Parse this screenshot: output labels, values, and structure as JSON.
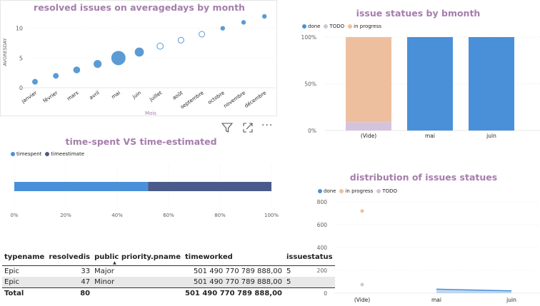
{
  "scatter": {
    "title": "resolved issues on averagedays by month",
    "ylabel": "AVGRESDAY",
    "xlabel": "Mois",
    "chart_data": {
      "type": "scatter",
      "categories": [
        "janvier",
        "février",
        "mars",
        "avril",
        "mai",
        "juin",
        "juillet",
        "août",
        "septembre",
        "octobre",
        "novembre",
        "décembre"
      ],
      "values": [
        1,
        2,
        3,
        4,
        5,
        6,
        7,
        8,
        9,
        10,
        11,
        12
      ],
      "size_weight": [
        1,
        1,
        1.2,
        1.4,
        2.5,
        1.6,
        1.1,
        1,
        1,
        0.8,
        0.8,
        0.8
      ],
      "hollow": [
        false,
        false,
        false,
        false,
        false,
        false,
        true,
        true,
        true,
        false,
        false,
        false
      ],
      "yticks": [
        0,
        5,
        10
      ],
      "ylim": [
        0,
        12
      ],
      "color": "#5b9bd5"
    }
  },
  "stacked": {
    "title": "issue statues by bmonth",
    "legend": [
      {
        "name": "done",
        "color": "#4a90d9"
      },
      {
        "name": "TODO",
        "color": "#d5c3dc"
      },
      {
        "name": "in progress",
        "color": "#eebf9e"
      }
    ],
    "chart_data": {
      "type": "bar",
      "stacked": "percent",
      "categories": [
        "(Vide)",
        "mai",
        "juin"
      ],
      "series": [
        {
          "name": "done",
          "values": [
            0,
            100,
            100
          ]
        },
        {
          "name": "TODO",
          "values": [
            9,
            0,
            0
          ]
        },
        {
          "name": "in progress",
          "values": [
            91,
            0,
            0
          ]
        }
      ],
      "yticks": [
        "0%",
        "50%",
        "100%"
      ]
    }
  },
  "toolbar": {
    "filter_icon": "filter-icon",
    "focus_icon": "focus-mode-icon",
    "more_label": "···"
  },
  "hbar": {
    "title": "time-spent VS time-estimated",
    "legend": [
      {
        "name": "timespent",
        "color": "#4a90d9"
      },
      {
        "name": "timeestimate",
        "color": "#4a5a8a"
      }
    ],
    "chart_data": {
      "type": "bar",
      "orientation": "horizontal",
      "stacked": "percent",
      "series": [
        {
          "name": "timespent",
          "values": [
            52
          ]
        },
        {
          "name": "timeestimate",
          "values": [
            48
          ]
        }
      ],
      "xticks": [
        "0%",
        "20%",
        "40%",
        "60%",
        "80%",
        "100%"
      ]
    }
  },
  "table": {
    "columns": [
      "typename",
      "resolvedis",
      "public priority.pname",
      "timeworked",
      "issuestatus"
    ],
    "rows": [
      [
        "Epic",
        "33",
        "Major",
        "501 490 770 789 888,00",
        "5"
      ],
      [
        "Epic",
        "47",
        "Minor",
        "501 490 770 789 888,00",
        "5"
      ]
    ],
    "total": [
      "Total",
      "80",
      "",
      "501 490 770 789 888,00",
      ""
    ]
  },
  "line": {
    "title": "distribution of issues statues",
    "legend": [
      {
        "name": "done",
        "color": "#4a90d9"
      },
      {
        "name": "in progress",
        "color": "#eebf9e"
      },
      {
        "name": "TODO",
        "color": "#d5c3dc"
      }
    ],
    "chart_data": {
      "type": "line",
      "categories": [
        "(Vide)",
        "mai",
        "juin"
      ],
      "series": [
        {
          "name": "done",
          "values": [
            null,
            35,
            20
          ]
        },
        {
          "name": "in progress",
          "values": [
            720,
            null,
            null
          ]
        },
        {
          "name": "TODO",
          "values": [
            75,
            null,
            null
          ]
        }
      ],
      "yticks": [
        0,
        200,
        400,
        600,
        800
      ],
      "ylim": [
        0,
        800
      ]
    }
  }
}
